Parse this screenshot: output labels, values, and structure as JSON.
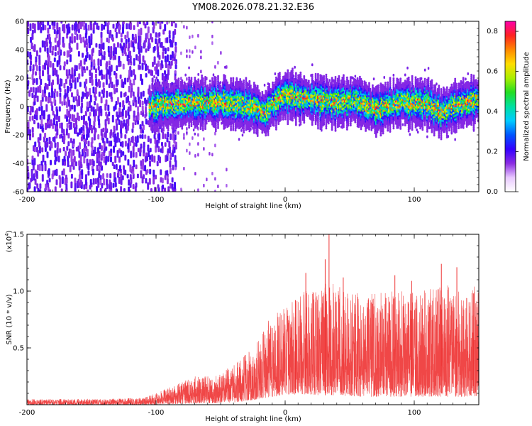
{
  "title": "YM08.2026.078.21.32.E36",
  "chart_data": [
    {
      "type": "heatmap",
      "name": "spectrogram",
      "xlabel": "Height of straight line (km)",
      "ylabel": "Frequency (Hz)",
      "xlim": [
        -200,
        150
      ],
      "ylim": [
        -60,
        60
      ],
      "x_ticks": [
        -200,
        -100,
        0,
        100
      ],
      "y_ticks": [
        -60,
        -40,
        -20,
        0,
        20,
        40,
        60
      ],
      "colorbar": {
        "label": "Normalized spectral amplitude",
        "range": [
          0,
          0.85
        ],
        "ticks": [
          0.0,
          0.2,
          0.4,
          0.6,
          0.8
        ],
        "tick_labels": [
          "0.0",
          "0.2",
          "0.4",
          "0.6",
          "0.8"
        ],
        "colors": [
          "#ffffff",
          "#e8c8ff",
          "#8a2be2",
          "#3300ff",
          "#0055ff",
          "#00ccff",
          "#00e0a0",
          "#22dd22",
          "#aaee00",
          "#ffdd00",
          "#ff8800",
          "#ff2222",
          "#ff00aa"
        ]
      },
      "regions": [
        {
          "label": "broadband noise",
          "x_range": [
            -200,
            -85
          ],
          "freq_range": [
            -60,
            60
          ],
          "amplitude": 0.08
        },
        {
          "label": "sparse noise",
          "x_range": [
            -85,
            -45
          ],
          "freq_range": [
            -60,
            60
          ],
          "amplitude": 0.03
        },
        {
          "label": "signal track",
          "x_range": [
            -105,
            150
          ],
          "center_freq": [
            [
              -105,
              0
            ],
            [
              -80,
              2
            ],
            [
              -60,
              3
            ],
            [
              -40,
              2
            ],
            [
              -25,
              0
            ],
            [
              -15,
              -5
            ],
            [
              -10,
              2
            ],
            [
              0,
              8
            ],
            [
              20,
              5
            ],
            [
              40,
              3
            ],
            [
              55,
              4
            ],
            [
              70,
              -2
            ],
            [
              90,
              3
            ],
            [
              110,
              2
            ],
            [
              120,
              -4
            ],
            [
              140,
              3
            ],
            [
              150,
              5
            ]
          ],
          "bandwidth": 16,
          "peak_amplitude": 0.75
        }
      ]
    },
    {
      "type": "line",
      "name": "snr",
      "xlabel": "Height of straight line (km)",
      "ylabel": "SNR (10 * v/v)",
      "multiplier": "(x10",
      "multiplier_exp": "4",
      "multiplier_close": ")",
      "xlim": [
        -200,
        150
      ],
      "ylim": [
        0,
        15000
      ],
      "x_ticks": [
        -200,
        -100,
        0,
        100
      ],
      "y_ticks": [
        5000,
        10000,
        15000
      ],
      "y_tick_labels": [
        "0.5",
        "1.0",
        "1.5"
      ],
      "color": "#ee3333",
      "envelope": {
        "x": [
          -200,
          -150,
          -110,
          -90,
          -70,
          -55,
          -40,
          -30,
          -20,
          -10,
          0,
          10,
          20,
          30,
          40,
          60,
          80,
          100,
          120,
          150
        ],
        "upper": [
          500,
          500,
          600,
          1500,
          2500,
          2500,
          3500,
          4500,
          6000,
          8000,
          8500,
          9500,
          10500,
          11000,
          10500,
          10000,
          10000,
          10000,
          10500,
          10500
        ],
        "lower": [
          0,
          0,
          0,
          50,
          100,
          150,
          200,
          300,
          500,
          700,
          900,
          900,
          900,
          800,
          800,
          700,
          700,
          700,
          700,
          700
        ]
      },
      "peaks": [
        {
          "x": 34,
          "y": 15000
        },
        {
          "x": 31,
          "y": 12800
        },
        {
          "x": 16,
          "y": 11600
        },
        {
          "x": 45,
          "y": 11200
        },
        {
          "x": 121,
          "y": 12400
        },
        {
          "x": 133,
          "y": 12100
        },
        {
          "x": 85,
          "y": 11400
        },
        {
          "x": 98,
          "y": 10900
        },
        {
          "x": 146,
          "y": 9800
        },
        {
          "x": 8,
          "y": 9200
        }
      ]
    }
  ]
}
